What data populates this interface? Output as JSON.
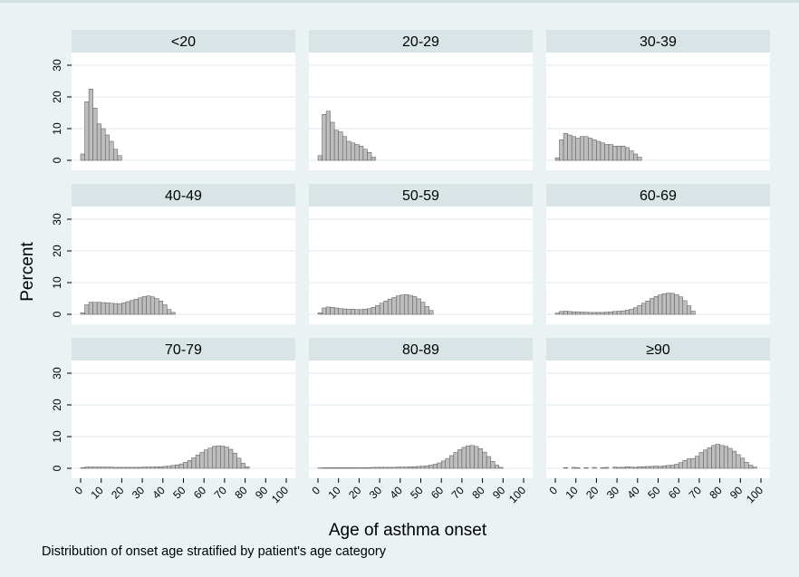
{
  "chart_data": {
    "type": "bar",
    "layout": "3x3 small multiples (histograms)",
    "xlabel": "Age of asthma onset",
    "ylabel": "Percent",
    "caption": "Distribution of onset age stratified by patient's age category",
    "xlim": [
      0,
      100
    ],
    "ylim": [
      0,
      33
    ],
    "xticks": [
      "0",
      "10",
      "20",
      "30",
      "40",
      "50",
      "60",
      "70",
      "80",
      "90",
      "100"
    ],
    "yticks": [
      "0",
      "10",
      "20",
      "30"
    ],
    "bin_width": 2,
    "bin_starts": [
      0,
      2,
      4,
      6,
      8,
      10,
      12,
      14,
      16,
      18,
      20,
      22,
      24,
      26,
      28,
      30,
      32,
      34,
      36,
      38,
      40,
      42,
      44,
      46,
      48,
      50,
      52,
      54,
      56,
      58,
      60,
      62,
      64,
      66,
      68,
      70,
      72,
      74,
      76,
      78,
      80,
      82,
      84,
      86,
      88,
      90,
      92,
      94,
      96,
      98
    ],
    "grid": "horizontal gridlines at y ticks",
    "colors": {
      "background": "#eaf2f3",
      "panel_header": "#d9e4e6",
      "bar_fill": "#bdbdbd",
      "bar_edge": "#555555"
    },
    "panels": [
      {
        "title": "<20",
        "values": [
          2,
          18.5,
          22.5,
          16.5,
          11.5,
          10,
          8,
          6,
          3.5,
          1.5,
          0,
          0,
          0,
          0,
          0,
          0,
          0,
          0,
          0,
          0,
          0,
          0,
          0,
          0,
          0,
          0,
          0,
          0,
          0,
          0,
          0,
          0,
          0,
          0,
          0,
          0,
          0,
          0,
          0,
          0,
          0,
          0,
          0,
          0,
          0,
          0,
          0,
          0,
          0,
          0
        ]
      },
      {
        "title": "20-29",
        "values": [
          1.5,
          14.5,
          15.5,
          12,
          9.5,
          9,
          7.5,
          6,
          5.5,
          5,
          4.5,
          3.5,
          2.5,
          1,
          0,
          0,
          0,
          0,
          0,
          0,
          0,
          0,
          0,
          0,
          0,
          0,
          0,
          0,
          0,
          0,
          0,
          0,
          0,
          0,
          0,
          0,
          0,
          0,
          0,
          0,
          0,
          0,
          0,
          0,
          0,
          0,
          0,
          0,
          0,
          0
        ]
      },
      {
        "title": "30-39",
        "values": [
          0.8,
          6.5,
          8.5,
          8,
          7.5,
          7,
          7.5,
          7.5,
          7,
          6.5,
          6,
          5.5,
          5,
          5,
          4.5,
          4.5,
          4.5,
          4,
          3,
          2,
          1,
          0,
          0,
          0,
          0,
          0,
          0,
          0,
          0,
          0,
          0,
          0,
          0,
          0,
          0,
          0,
          0,
          0,
          0,
          0,
          0,
          0,
          0,
          0,
          0,
          0,
          0,
          0,
          0,
          0
        ]
      },
      {
        "title": "40-49",
        "values": [
          0.5,
          3,
          3.8,
          3.8,
          3.8,
          3.7,
          3.6,
          3.5,
          3.4,
          3.3,
          3.6,
          4,
          4.4,
          4.8,
          5.2,
          5.6,
          5.8,
          5.5,
          5,
          4.2,
          3,
          1.5,
          0.6,
          0,
          0,
          0,
          0,
          0,
          0,
          0,
          0,
          0,
          0,
          0,
          0,
          0,
          0,
          0,
          0,
          0,
          0,
          0,
          0,
          0,
          0,
          0,
          0,
          0,
          0,
          0
        ]
      },
      {
        "title": "50-59",
        "values": [
          0.5,
          2,
          2.3,
          2.2,
          2,
          1.8,
          1.7,
          1.6,
          1.6,
          1.5,
          1.5,
          1.6,
          1.8,
          2.2,
          2.8,
          3.5,
          4.2,
          4.8,
          5.3,
          5.8,
          6.1,
          6.2,
          6,
          5.6,
          4.9,
          3.8,
          2.5,
          1.2,
          0,
          0,
          0,
          0,
          0,
          0,
          0,
          0,
          0,
          0,
          0,
          0,
          0,
          0,
          0,
          0,
          0,
          0,
          0,
          0,
          0,
          0
        ]
      },
      {
        "title": "60-69",
        "values": [
          0.4,
          0.9,
          1,
          0.9,
          0.8,
          0.8,
          0.7,
          0.7,
          0.6,
          0.6,
          0.6,
          0.6,
          0.7,
          0.8,
          0.9,
          1,
          1.1,
          1.3,
          1.6,
          2.1,
          2.8,
          3.5,
          4.2,
          5,
          5.6,
          6.1,
          6.5,
          6.7,
          6.6,
          6.2,
          5.5,
          4.3,
          2.7,
          1,
          0,
          0,
          0,
          0,
          0,
          0,
          0,
          0,
          0,
          0,
          0,
          0,
          0,
          0,
          0,
          0
        ]
      },
      {
        "title": "70-79",
        "values": [
          0.2,
          0.4,
          0.4,
          0.4,
          0.4,
          0.4,
          0.4,
          0.4,
          0.3,
          0.3,
          0.3,
          0.3,
          0.3,
          0.3,
          0.3,
          0.4,
          0.4,
          0.4,
          0.5,
          0.5,
          0.6,
          0.7,
          0.9,
          1.1,
          1.4,
          1.9,
          2.5,
          3.3,
          4.2,
          5,
          5.8,
          6.4,
          6.9,
          7.1,
          7,
          6.7,
          6,
          4.8,
          3.2,
          1.6,
          0.5,
          0,
          0,
          0,
          0,
          0,
          0,
          0,
          0,
          0
        ]
      },
      {
        "title": "80-89",
        "values": [
          0.1,
          0.2,
          0.2,
          0.2,
          0.2,
          0.2,
          0.2,
          0.2,
          0.2,
          0.2,
          0.2,
          0.2,
          0.2,
          0.3,
          0.3,
          0.3,
          0.3,
          0.3,
          0.3,
          0.4,
          0.4,
          0.4,
          0.5,
          0.5,
          0.6,
          0.7,
          0.8,
          1,
          1.3,
          1.7,
          2.3,
          3.1,
          4,
          5,
          5.9,
          6.6,
          7.1,
          7.2,
          6.9,
          6.2,
          5.1,
          3.7,
          2.2,
          1,
          0.3,
          0,
          0,
          0,
          0,
          0
        ]
      },
      {
        "title": "≥90",
        "values": [
          0,
          0,
          0.2,
          0,
          0.3,
          0.2,
          0,
          0.2,
          0,
          0.3,
          0,
          0.2,
          0.3,
          0,
          0.4,
          0.3,
          0.3,
          0.5,
          0.4,
          0.3,
          0.5,
          0.5,
          0.6,
          0.6,
          0.7,
          0.6,
          0.8,
          0.9,
          1,
          1.3,
          1.8,
          2.5,
          3,
          3.1,
          3.8,
          5,
          5.8,
          6.5,
          7.2,
          7.6,
          7.2,
          6.9,
          6.3,
          5.4,
          4.3,
          3.2,
          1.9,
          1,
          0.4,
          0
        ]
      }
    ]
  }
}
